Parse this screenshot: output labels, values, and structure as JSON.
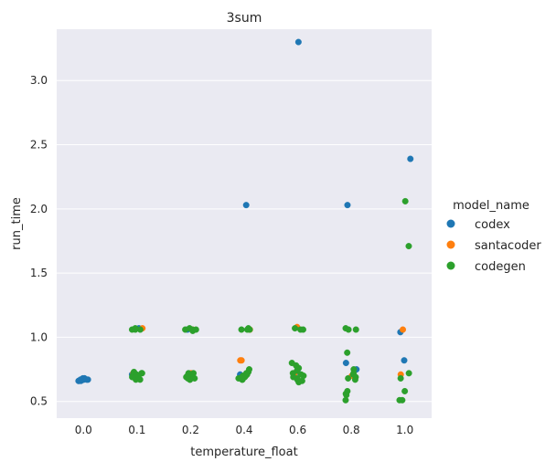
{
  "chart_data": {
    "type": "scatter",
    "title": "3sum",
    "xlabel": "temperature_float",
    "ylabel": "run_time",
    "categories": [
      "0.0",
      "0.1",
      "0.2",
      "0.4",
      "0.6",
      "0.8",
      "1.0"
    ],
    "yticks": [
      "0.5",
      "1.0",
      "1.5",
      "2.0",
      "2.5",
      "3.0"
    ],
    "ylim": [
      0.37,
      3.4
    ],
    "grid": true,
    "legend": {
      "title": "model_name",
      "placement": "right",
      "entries": [
        "codex",
        "santacoder",
        "codegen"
      ]
    },
    "series": [
      {
        "name": "codex",
        "color": "#1f77b4",
        "points": [
          {
            "cat": "0.0",
            "y": 0.67
          },
          {
            "cat": "0.0",
            "y": 0.68
          },
          {
            "cat": "0.0",
            "y": 0.66
          },
          {
            "cat": "0.0",
            "y": 0.67
          },
          {
            "cat": "0.0",
            "y": 0.68
          },
          {
            "cat": "0.0",
            "y": 0.67
          },
          {
            "cat": "0.0",
            "y": 0.66
          },
          {
            "cat": "0.0",
            "y": 0.67
          },
          {
            "cat": "0.0",
            "y": 0.68
          },
          {
            "cat": "0.0",
            "y": 0.67
          },
          {
            "cat": "0.0",
            "y": 0.66
          },
          {
            "cat": "0.0",
            "y": 0.67
          },
          {
            "cat": "0.1",
            "y": 1.07
          },
          {
            "cat": "0.1",
            "y": 0.71
          },
          {
            "cat": "0.2",
            "y": 0.71
          },
          {
            "cat": "0.2",
            "y": 1.06
          },
          {
            "cat": "0.4",
            "y": 2.03
          },
          {
            "cat": "0.4",
            "y": 0.71
          },
          {
            "cat": "0.6",
            "y": 3.3
          },
          {
            "cat": "0.6",
            "y": 0.73
          },
          {
            "cat": "0.8",
            "y": 2.03
          },
          {
            "cat": "0.8",
            "y": 0.8
          },
          {
            "cat": "0.8",
            "y": 0.75
          },
          {
            "cat": "1.0",
            "y": 2.39
          },
          {
            "cat": "1.0",
            "y": 1.04
          },
          {
            "cat": "1.0",
            "y": 0.82
          }
        ]
      },
      {
        "name": "santacoder",
        "color": "#ff7f0e",
        "points": [
          {
            "cat": "0.1",
            "y": 1.07
          },
          {
            "cat": "0.1",
            "y": 0.72
          },
          {
            "cat": "0.1",
            "y": 0.7
          },
          {
            "cat": "0.2",
            "y": 0.72
          },
          {
            "cat": "0.2",
            "y": 1.06
          },
          {
            "cat": "0.4",
            "y": 0.82
          },
          {
            "cat": "0.4",
            "y": 0.82
          },
          {
            "cat": "0.4",
            "y": 1.06
          },
          {
            "cat": "0.6",
            "y": 1.08
          },
          {
            "cat": "0.6",
            "y": 0.72
          },
          {
            "cat": "0.8",
            "y": 0.7
          },
          {
            "cat": "1.0",
            "y": 1.06
          },
          {
            "cat": "1.0",
            "y": 0.71
          }
        ]
      },
      {
        "name": "codegen",
        "color": "#2ca02c",
        "points": [
          {
            "cat": "0.1",
            "y": 1.06
          },
          {
            "cat": "0.1",
            "y": 1.06
          },
          {
            "cat": "0.1",
            "y": 1.07
          },
          {
            "cat": "0.1",
            "y": 1.06
          },
          {
            "cat": "0.1",
            "y": 0.72
          },
          {
            "cat": "0.1",
            "y": 0.73
          },
          {
            "cat": "0.1",
            "y": 0.72
          },
          {
            "cat": "0.1",
            "y": 0.7
          },
          {
            "cat": "0.1",
            "y": 0.69
          },
          {
            "cat": "0.1",
            "y": 0.68
          },
          {
            "cat": "0.1",
            "y": 0.67
          },
          {
            "cat": "0.1",
            "y": 0.67
          },
          {
            "cat": "0.1",
            "y": 0.68
          },
          {
            "cat": "0.1",
            "y": 0.7
          },
          {
            "cat": "0.1",
            "y": 0.72
          },
          {
            "cat": "0.1",
            "y": 0.71
          },
          {
            "cat": "0.1",
            "y": 0.69
          },
          {
            "cat": "0.2",
            "y": 1.06
          },
          {
            "cat": "0.2",
            "y": 1.07
          },
          {
            "cat": "0.2",
            "y": 1.05
          },
          {
            "cat": "0.2",
            "y": 1.06
          },
          {
            "cat": "0.2",
            "y": 1.06
          },
          {
            "cat": "0.2",
            "y": 0.72
          },
          {
            "cat": "0.2",
            "y": 0.71
          },
          {
            "cat": "0.2",
            "y": 0.7
          },
          {
            "cat": "0.2",
            "y": 0.69
          },
          {
            "cat": "0.2",
            "y": 0.68
          },
          {
            "cat": "0.2",
            "y": 0.67
          },
          {
            "cat": "0.2",
            "y": 0.67
          },
          {
            "cat": "0.2",
            "y": 0.68
          },
          {
            "cat": "0.2",
            "y": 0.7
          },
          {
            "cat": "0.2",
            "y": 0.72
          },
          {
            "cat": "0.2",
            "y": 0.69
          },
          {
            "cat": "0.4",
            "y": 1.06
          },
          {
            "cat": "0.4",
            "y": 1.06
          },
          {
            "cat": "0.4",
            "y": 1.07
          },
          {
            "cat": "0.4",
            "y": 1.06
          },
          {
            "cat": "0.4",
            "y": 0.75
          },
          {
            "cat": "0.4",
            "y": 0.73
          },
          {
            "cat": "0.4",
            "y": 0.71
          },
          {
            "cat": "0.4",
            "y": 0.7
          },
          {
            "cat": "0.4",
            "y": 0.69
          },
          {
            "cat": "0.4",
            "y": 0.68
          },
          {
            "cat": "0.4",
            "y": 0.67
          },
          {
            "cat": "0.4",
            "y": 0.67
          },
          {
            "cat": "0.4",
            "y": 0.68
          },
          {
            "cat": "0.4",
            "y": 0.7
          },
          {
            "cat": "0.4",
            "y": 0.72
          },
          {
            "cat": "0.6",
            "y": 1.06
          },
          {
            "cat": "0.6",
            "y": 1.07
          },
          {
            "cat": "0.6",
            "y": 1.06
          },
          {
            "cat": "0.6",
            "y": 0.8
          },
          {
            "cat": "0.6",
            "y": 0.78
          },
          {
            "cat": "0.6",
            "y": 0.76
          },
          {
            "cat": "0.6",
            "y": 0.74
          },
          {
            "cat": "0.6",
            "y": 0.72
          },
          {
            "cat": "0.6",
            "y": 0.7
          },
          {
            "cat": "0.6",
            "y": 0.68
          },
          {
            "cat": "0.6",
            "y": 0.66
          },
          {
            "cat": "0.6",
            "y": 0.65
          },
          {
            "cat": "0.6",
            "y": 0.67
          },
          {
            "cat": "0.6",
            "y": 0.69
          },
          {
            "cat": "0.6",
            "y": 0.71
          },
          {
            "cat": "0.8",
            "y": 1.06
          },
          {
            "cat": "0.8",
            "y": 1.06
          },
          {
            "cat": "0.8",
            "y": 1.07
          },
          {
            "cat": "0.8",
            "y": 0.88
          },
          {
            "cat": "0.8",
            "y": 0.75
          },
          {
            "cat": "0.8",
            "y": 0.72
          },
          {
            "cat": "0.8",
            "y": 0.71
          },
          {
            "cat": "0.8",
            "y": 0.69
          },
          {
            "cat": "0.8",
            "y": 0.68
          },
          {
            "cat": "0.8",
            "y": 0.67
          },
          {
            "cat": "0.8",
            "y": 0.58
          },
          {
            "cat": "0.8",
            "y": 0.56
          },
          {
            "cat": "0.8",
            "y": 0.55
          },
          {
            "cat": "0.8",
            "y": 0.51
          },
          {
            "cat": "1.0",
            "y": 2.06
          },
          {
            "cat": "1.0",
            "y": 1.71
          },
          {
            "cat": "1.0",
            "y": 0.72
          },
          {
            "cat": "1.0",
            "y": 0.68
          },
          {
            "cat": "1.0",
            "y": 0.58
          },
          {
            "cat": "1.0",
            "y": 0.51
          },
          {
            "cat": "1.0",
            "y": 0.51
          }
        ]
      }
    ]
  }
}
